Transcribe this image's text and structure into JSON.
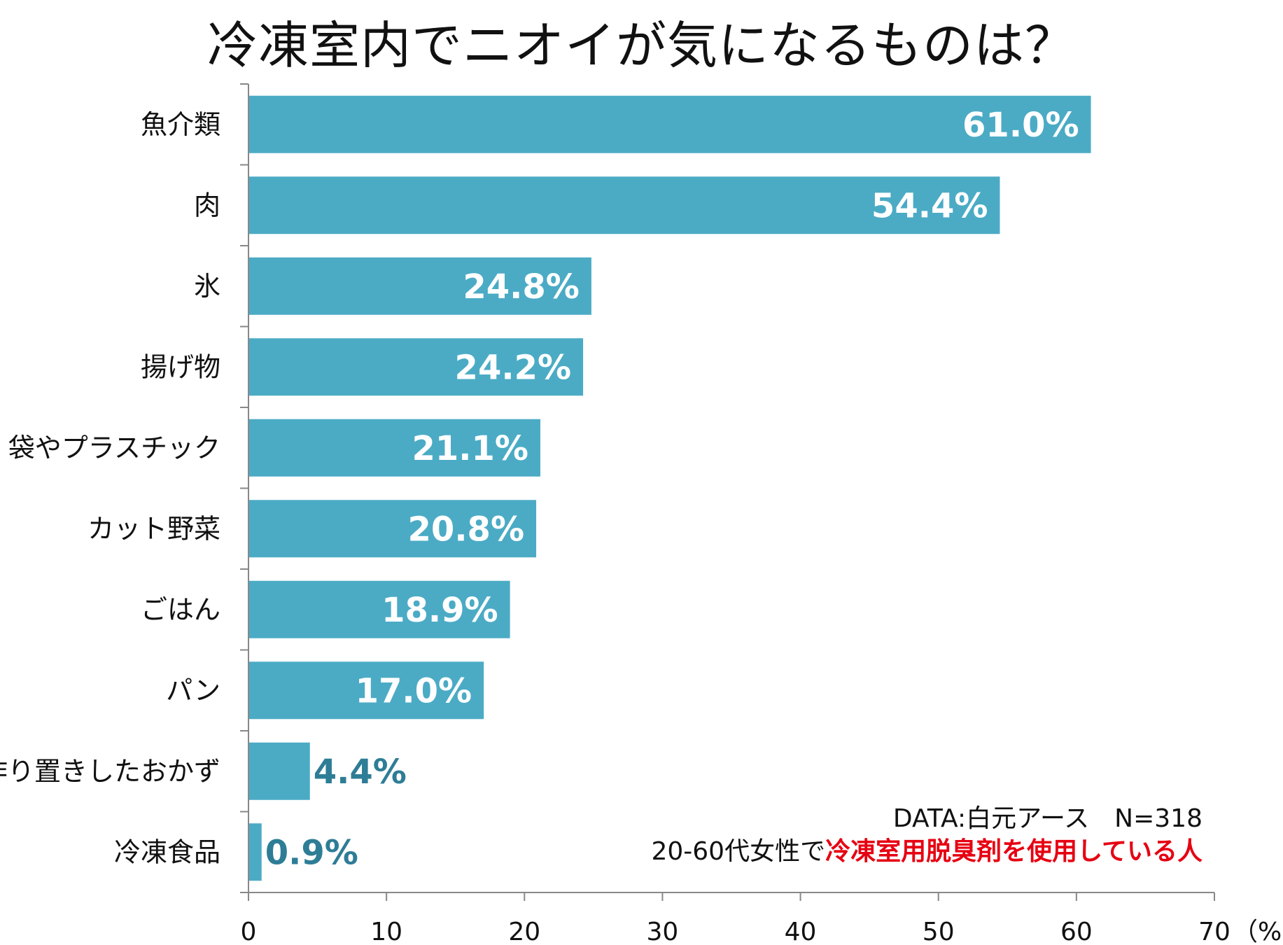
{
  "chart_data": {
    "type": "bar",
    "orientation": "horizontal",
    "title": "冷凍室内でニオイが気になるものは？",
    "categories": [
      "魚介類",
      "肉",
      "氷",
      "揚げ物",
      "袋やプラスチック",
      "カット野菜",
      "ごはん",
      "パン",
      "作り置きしたおかず",
      "冷凍食品"
    ],
    "values": [
      61.0,
      54.4,
      24.8,
      24.2,
      21.1,
      20.8,
      18.9,
      17.0,
      4.4,
      0.9
    ],
    "value_labels": [
      "61.0%",
      "54.4%",
      "24.8%",
      "24.2%",
      "21.1%",
      "20.8%",
      "18.9%",
      "17.0%",
      "4.4%",
      "0.9%"
    ],
    "xlim": [
      0,
      70
    ],
    "x_ticks": [
      "0",
      "10",
      "20",
      "30",
      "40",
      "50",
      "60",
      "70"
    ],
    "x_unit": "（%）",
    "grid": false
  },
  "source": {
    "line1": "DATA:白元アース　N=318",
    "line2_prefix": "20-60代女性で",
    "line2_highlight": "冷凍室用脱臭剤を使用している人"
  },
  "colors": {
    "bar": "#4babc5",
    "label_inside": "#ffffff",
    "label_outside": "#2e7d96",
    "axis": "#888888",
    "highlight": "#e60012"
  }
}
